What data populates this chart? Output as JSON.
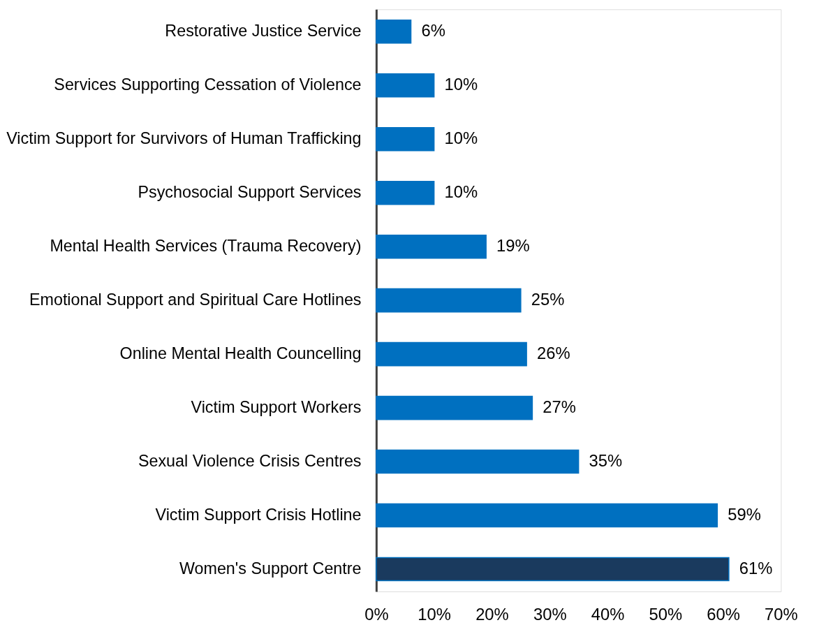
{
  "chart_data": {
    "type": "bar",
    "orientation": "horizontal",
    "categories": [
      "Restorative Justice Service ",
      "Services Supporting Cessation of Violence",
      "Victim Support for Survivors of Human Trafficking",
      "Psychosocial Support Services",
      "Mental Health Services (Trauma Recovery)",
      "Emotional Support and Spiritual Care Hotlines",
      "Online Mental Health Councelling",
      "Victim Support Workers",
      "Sexual Violence Crisis Centres",
      "Victim Support Crisis Hotline",
      "Women's Support Centre"
    ],
    "values": [
      6,
      10,
      10,
      10,
      19,
      25,
      26,
      27,
      35,
      59,
      61
    ],
    "colors": [
      "#0070c0",
      "#0070c0",
      "#0070c0",
      "#0070c0",
      "#0070c0",
      "#0070c0",
      "#0070c0",
      "#0070c0",
      "#0070c0",
      "#0070c0",
      "#1a3a5e"
    ],
    "value_labels": [
      "6%",
      "10%",
      "10%",
      "10%",
      "19%",
      "25%",
      "26%",
      "27%",
      "35%",
      "59%",
      "61%"
    ],
    "xlim": [
      0,
      70
    ],
    "xticks": [
      {
        "value": 0,
        "label": "0%"
      },
      {
        "value": 10,
        "label": "10%"
      },
      {
        "value": 20,
        "label": "20%"
      },
      {
        "value": 30,
        "label": "30%"
      },
      {
        "value": 40,
        "label": "40%"
      },
      {
        "value": 50,
        "label": "50%"
      },
      {
        "value": 60,
        "label": "60%"
      },
      {
        "value": 70,
        "label": "70%"
      }
    ],
    "grid": false
  }
}
